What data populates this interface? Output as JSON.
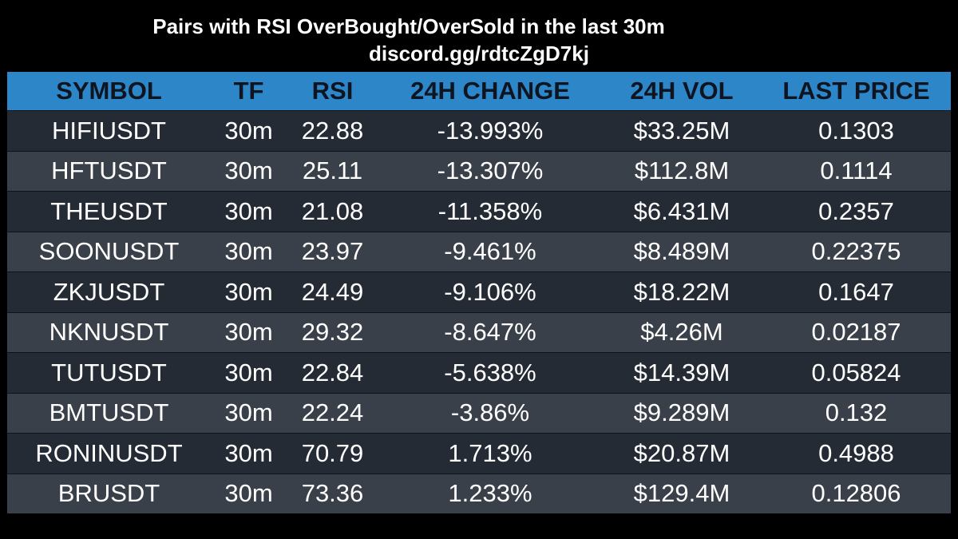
{
  "title": "Pairs with RSI OverBought/OverSold in the last 30m",
  "subtitle": "discord.gg/rdtcZgD7kj",
  "colors": {
    "background": "#000000",
    "header_bg": "#2d86c8",
    "header_text": "#0e1520",
    "row_dark": "#252b34",
    "row_light": "#3a4049"
  },
  "table": {
    "headers": [
      "SYMBOL",
      "TF",
      "RSI",
      "24H CHANGE",
      "24H VOL",
      "LAST PRICE"
    ],
    "rows": [
      [
        "HIFIUSDT",
        "30m",
        "22.88",
        "-13.993%",
        "$33.25M",
        "0.1303"
      ],
      [
        "HFTUSDT",
        "30m",
        "25.11",
        "-13.307%",
        "$112.8M",
        "0.1114"
      ],
      [
        "THEUSDT",
        "30m",
        "21.08",
        "-11.358%",
        "$6.431M",
        "0.2357"
      ],
      [
        "SOONUSDT",
        "30m",
        "23.97",
        "-9.461%",
        "$8.489M",
        "0.22375"
      ],
      [
        "ZKJUSDT",
        "30m",
        "24.49",
        "-9.106%",
        "$18.22M",
        "0.1647"
      ],
      [
        "NKNUSDT",
        "30m",
        "29.32",
        "-8.647%",
        "$4.26M",
        "0.02187"
      ],
      [
        "TUTUSDT",
        "30m",
        "22.84",
        "-5.638%",
        "$14.39M",
        "0.05824"
      ],
      [
        "BMTUSDT",
        "30m",
        "22.24",
        "-3.86%",
        "$9.289M",
        "0.132"
      ],
      [
        "RONINUSDT",
        "30m",
        "70.79",
        "1.713%",
        "$20.87M",
        "0.4988"
      ],
      [
        "BRUSDT",
        "30m",
        "73.36",
        "1.233%",
        "$129.4M",
        "0.12806"
      ]
    ]
  }
}
